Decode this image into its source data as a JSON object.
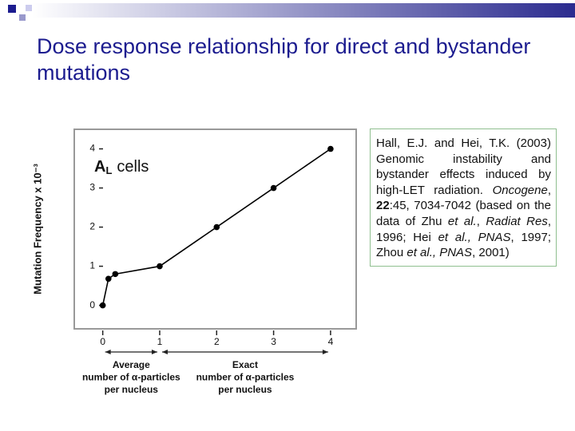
{
  "slide_title": "Dose response relationship for direct and bystander mutations",
  "chart_data": {
    "type": "line",
    "ylabel": "Mutation Frequency x 10⁻³",
    "annotation": {
      "main": "A",
      "sub": "L",
      "rest": "cells"
    },
    "x": [
      0,
      0.1,
      0.22,
      1,
      2,
      3,
      4
    ],
    "series": [
      {
        "color": "#000000",
        "values": [
          0,
          0.68,
          0.8,
          1.0,
          2.0,
          3.0,
          4.0
        ]
      }
    ],
    "xlim": [
      -0.5,
      4.45
    ],
    "ylim": [
      -0.6,
      4.5
    ],
    "xticks": [
      0,
      1,
      2,
      3,
      4
    ],
    "yticks": [
      0,
      1,
      2,
      3,
      4
    ],
    "x_groups": [
      {
        "from": 0,
        "to": 1,
        "lines": [
          "Average",
          "number of α-particles",
          "per nucleus"
        ]
      },
      {
        "from": 1,
        "to": 4,
        "lines": [
          "Exact",
          "number of α-particles",
          "per nucleus"
        ]
      }
    ]
  },
  "citation": [
    "Hall, E.J. and Hei, T.K. (2003) Genomic instability and bystander effects induced by high-LET radiation. ",
    "Oncogene",
    ", ",
    "22",
    ":45, 7034-7042 (based on the data of Zhu ",
    "et al.",
    ", ",
    "Radiat Res",
    ", 1996; Hei ",
    "et al., PNAS",
    ", 1997; Zhou ",
    "et al., PNAS",
    ", 2001)"
  ]
}
